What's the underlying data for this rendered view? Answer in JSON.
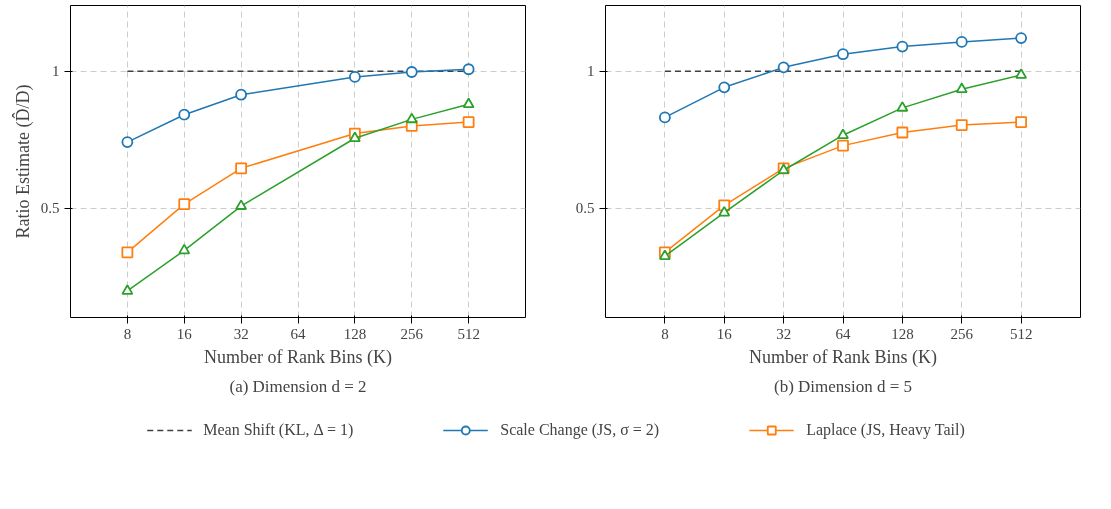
{
  "chart_data": [
    {
      "type": "line",
      "xlabel": "Number of Rank Bins (K)",
      "ylabel": "Ratio Estimate (D̂/D)",
      "annotations": [
        "(a) Dimension d = 2"
      ],
      "log": "x",
      "xlim": [
        4,
        1024
      ],
      "xticks": [
        8,
        16,
        32,
        64,
        128,
        256,
        512
      ],
      "ylim": [
        0.1,
        1.24
      ],
      "yticks": [
        0.5,
        1
      ],
      "grid": true,
      "legend": "bottom",
      "series": [
        {
          "name": "Mean Shift (KL, Δ = 1)",
          "color": "#404040",
          "x": [
            8,
            512
          ],
          "values": [
            1,
            1
          ],
          "marker": "none",
          "line_style": "dashed"
        },
        {
          "name": "Scale Change (JS, σ = 2)",
          "color": "#1f77b4",
          "x": [
            8,
            16,
            32,
            128,
            256,
            512
          ],
          "values": [
            0.741,
            0.841,
            0.914,
            0.979,
            0.997,
            1.007
          ],
          "marker": "circle",
          "line_style": "solid"
        },
        {
          "name": "Laplace (JS, Heavy Tail)",
          "color": "#ff7f0e",
          "x": [
            8,
            16,
            32,
            128,
            256,
            512
          ],
          "values": [
            0.338,
            0.514,
            0.645,
            0.772,
            0.8,
            0.814
          ],
          "marker": "square",
          "line_style": "solid"
        },
        {
          "color": "#2ca02c",
          "x": [
            8,
            16,
            32,
            128,
            256,
            512
          ],
          "values": [
            0.197,
            0.345,
            0.507,
            0.755,
            0.824,
            0.879
          ],
          "marker": "triangle",
          "line_style": "solid"
        }
      ]
    },
    {
      "type": "line",
      "xlabel": "Number of Rank Bins (K)",
      "annotations": [
        "(b) Dimension d = 5"
      ],
      "log": "x",
      "xlim": [
        4,
        1024
      ],
      "xticks": [
        8,
        16,
        32,
        64,
        128,
        256,
        512
      ],
      "ylim": [
        0.1,
        1.24
      ],
      "yticks": [
        0.5,
        1
      ],
      "grid": true,
      "series": [
        {
          "color": "#404040",
          "x": [
            8,
            512
          ],
          "values": [
            1,
            1
          ],
          "marker": "none",
          "line_style": "dashed"
        },
        {
          "color": "#1f77b4",
          "x": [
            8,
            16,
            32,
            64,
            128,
            256,
            512
          ],
          "values": [
            0.831,
            0.941,
            1.014,
            1.062,
            1.09,
            1.107,
            1.121
          ],
          "marker": "circle",
          "line_style": "solid"
        },
        {
          "color": "#ff7f0e",
          "x": [
            8,
            16,
            32,
            64,
            128,
            256,
            512
          ],
          "values": [
            0.338,
            0.51,
            0.645,
            0.728,
            0.776,
            0.803,
            0.814
          ],
          "marker": "square",
          "line_style": "solid"
        },
        {
          "color": "#2ca02c",
          "x": [
            8,
            16,
            32,
            64,
            128,
            256,
            512
          ],
          "values": [
            0.324,
            0.483,
            0.638,
            0.766,
            0.866,
            0.934,
            0.986
          ],
          "marker": "triangle",
          "line_style": "solid"
        }
      ]
    }
  ]
}
